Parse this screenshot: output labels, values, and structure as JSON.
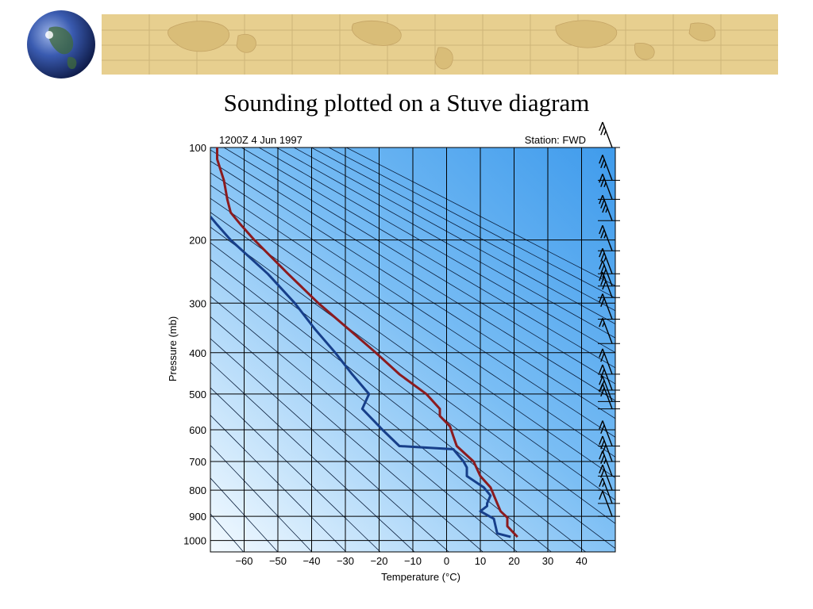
{
  "slide": {
    "title": "Sounding plotted on a Stuve diagram"
  },
  "chart_data": {
    "type": "line",
    "title": "",
    "header_left": "1200Z  4 Jun 1997",
    "header_right": "Station: FWD",
    "xlabel": "Temperature (°C)",
    "ylabel": "Pressure (mb)",
    "xlim": [
      -70,
      50
    ],
    "ylim": [
      1050,
      100
    ],
    "x_ticks": [
      -60,
      -50,
      -40,
      -30,
      -20,
      -10,
      0,
      10,
      20,
      30,
      40
    ],
    "x_tick_labels": [
      "−60",
      "−50",
      "−40",
      "−30",
      "−20",
      "−10",
      "0",
      "10",
      "20",
      "30",
      "40"
    ],
    "y_ticks": [
      100,
      200,
      300,
      400,
      500,
      600,
      700,
      800,
      900,
      1000
    ],
    "y_tick_labels": [
      "100",
      "200",
      "300",
      "400",
      "500",
      "600",
      "700",
      "800",
      "900",
      "1000"
    ],
    "grid": true,
    "colors": {
      "temperature": "#8b1b1f",
      "dewpoint": "#173f8a",
      "background_top": "#4da6f0",
      "background_bottom": "#eaf6ff"
    },
    "series": [
      {
        "key": "temperature",
        "points": [
          {
            "p": 985,
            "t": 21
          },
          {
            "p": 940,
            "t": 18
          },
          {
            "p": 905,
            "t": 18
          },
          {
            "p": 880,
            "t": 16
          },
          {
            "p": 850,
            "t": 15
          },
          {
            "p": 790,
            "t": 13
          },
          {
            "p": 750,
            "t": 10
          },
          {
            "p": 700,
            "t": 8
          },
          {
            "p": 650,
            "t": 3
          },
          {
            "p": 620,
            "t": 2
          },
          {
            "p": 590,
            "t": 1
          },
          {
            "p": 560,
            "t": -2
          },
          {
            "p": 540,
            "t": -2
          },
          {
            "p": 500,
            "t": -6
          },
          {
            "p": 450,
            "t": -14
          },
          {
            "p": 400,
            "t": -21
          },
          {
            "p": 350,
            "t": -29
          },
          {
            "p": 300,
            "t": -38
          },
          {
            "p": 250,
            "t": -47
          },
          {
            "p": 200,
            "t": -57
          },
          {
            "p": 180,
            "t": -61
          },
          {
            "p": 165,
            "t": -64
          },
          {
            "p": 150,
            "t": -65
          },
          {
            "p": 130,
            "t": -66
          },
          {
            "p": 110,
            "t": -68
          },
          {
            "p": 100,
            "t": -68
          }
        ]
      },
      {
        "key": "dewpoint",
        "points": [
          {
            "p": 985,
            "t": 19
          },
          {
            "p": 970,
            "t": 15
          },
          {
            "p": 910,
            "t": 14
          },
          {
            "p": 880,
            "t": 10
          },
          {
            "p": 860,
            "t": 12
          },
          {
            "p": 850,
            "t": 12
          },
          {
            "p": 820,
            "t": 13
          },
          {
            "p": 790,
            "t": 11
          },
          {
            "p": 750,
            "t": 6
          },
          {
            "p": 720,
            "t": 6
          },
          {
            "p": 700,
            "t": 5
          },
          {
            "p": 660,
            "t": 2
          },
          {
            "p": 650,
            "t": -14
          },
          {
            "p": 600,
            "t": -19
          },
          {
            "p": 540,
            "t": -25
          },
          {
            "p": 500,
            "t": -23
          },
          {
            "p": 450,
            "t": -28
          },
          {
            "p": 400,
            "t": -33
          },
          {
            "p": 350,
            "t": -39
          },
          {
            "p": 300,
            "t": -45
          },
          {
            "p": 250,
            "t": -53
          },
          {
            "p": 200,
            "t": -64
          },
          {
            "p": 180,
            "t": -68
          },
          {
            "p": 170,
            "t": -70
          }
        ]
      }
    ],
    "wind_barbs": [
      {
        "p": 100,
        "speed": 25
      },
      {
        "p": 130,
        "speed": 25
      },
      {
        "p": 150,
        "speed": 25
      },
      {
        "p": 175,
        "speed": 35
      },
      {
        "p": 215,
        "speed": 25
      },
      {
        "p": 250,
        "speed": 25
      },
      {
        "p": 270,
        "speed": 30
      },
      {
        "p": 290,
        "speed": 30
      },
      {
        "p": 330,
        "speed": 20
      },
      {
        "p": 380,
        "speed": 15
      },
      {
        "p": 450,
        "speed": 20
      },
      {
        "p": 490,
        "speed": 20
      },
      {
        "p": 520,
        "speed": 20
      },
      {
        "p": 540,
        "speed": 20
      },
      {
        "p": 650,
        "speed": 20
      },
      {
        "p": 700,
        "speed": 30
      },
      {
        "p": 750,
        "speed": 25
      },
      {
        "p": 800,
        "speed": 20
      },
      {
        "p": 850,
        "speed": 15
      },
      {
        "p": 900,
        "speed": 10
      }
    ]
  }
}
